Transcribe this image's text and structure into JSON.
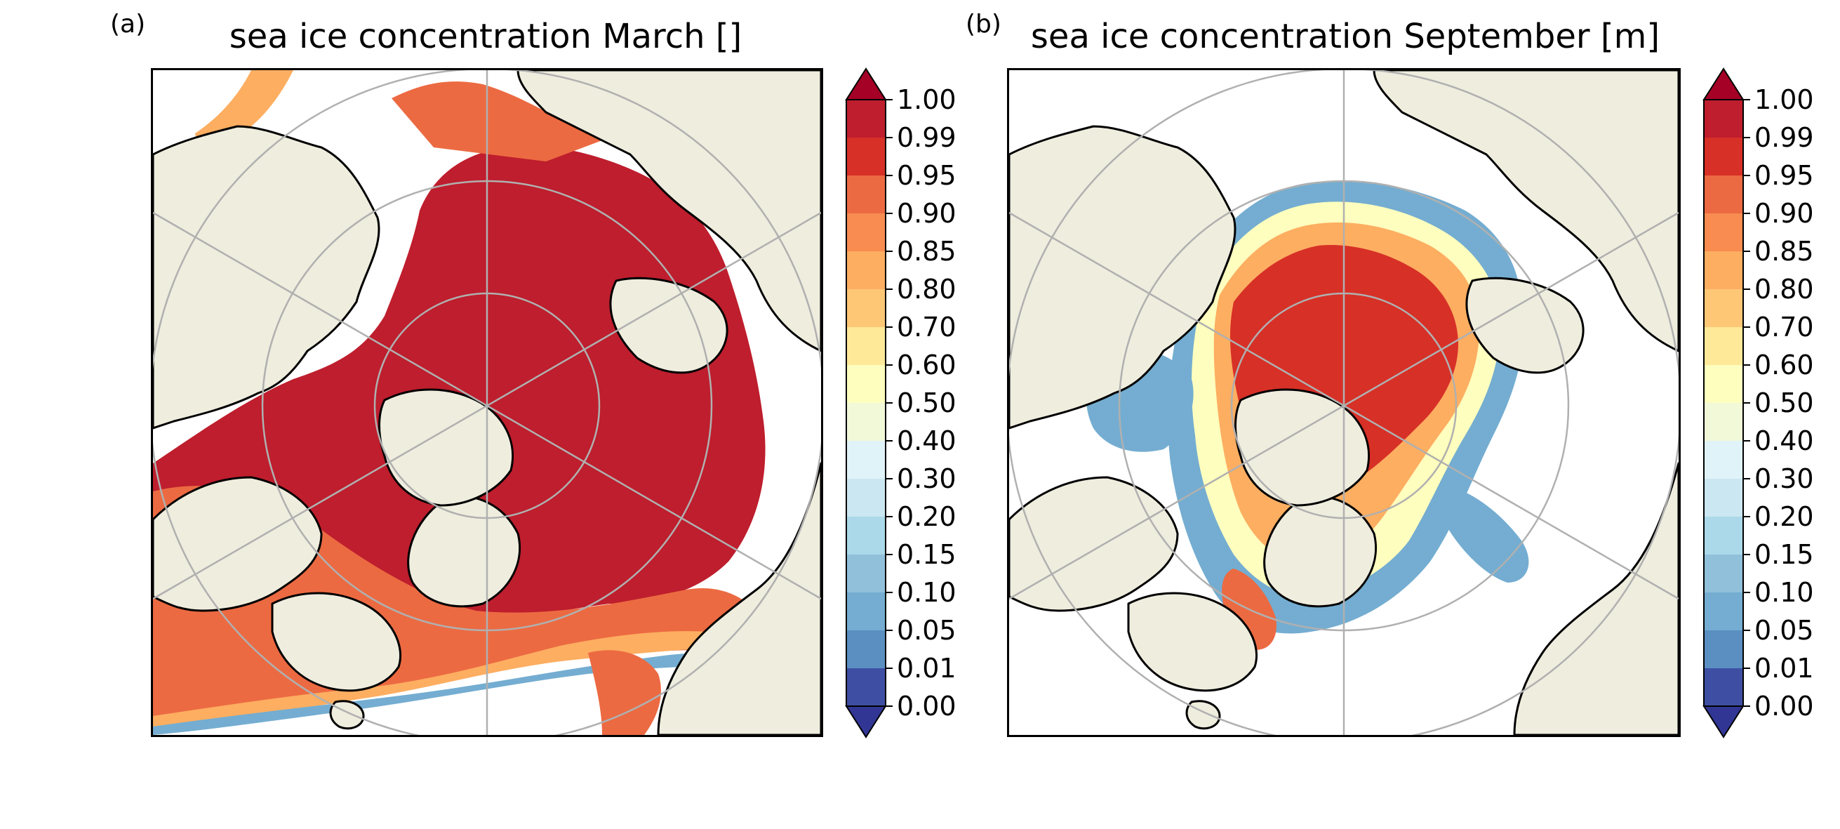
{
  "panels": [
    {
      "letter": "(a)",
      "title": "sea ice concentration March []",
      "colorbar_ticks": [
        "1.00",
        "0.99",
        "0.95",
        "0.90",
        "0.85",
        "0.80",
        "0.70",
        "0.60",
        "0.50",
        "0.40",
        "0.30",
        "0.20",
        "0.15",
        "0.10",
        "0.05",
        "0.01",
        "0.00"
      ]
    },
    {
      "letter": "(b)",
      "title": "sea ice concentration September [m]",
      "colorbar_ticks": [
        "1.00",
        "0.99",
        "0.95",
        "0.90",
        "0.85",
        "0.80",
        "0.70",
        "0.60",
        "0.50",
        "0.40",
        "0.30",
        "0.20",
        "0.15",
        "0.10",
        "0.05",
        "0.01",
        "0.00"
      ]
    }
  ],
  "colors": {
    "land": "#efedde",
    "ocean": "#ffffff",
    "coastline": "#000000",
    "gridlines": "#b0b0b0",
    "colormap": [
      "#3e4fa3",
      "#4575b4",
      "#5b8fc2",
      "#74add1",
      "#91c0db",
      "#abd9e9",
      "#cbe7f1",
      "#e0f3f8",
      "#f2f9d8",
      "#fefebe",
      "#fee999",
      "#fdc776",
      "#fdae61",
      "#f88c51",
      "#ec6a42",
      "#d73027",
      "#be1e2d"
    ],
    "extend_under": "#313695",
    "extend_over": "#a50026"
  }
}
